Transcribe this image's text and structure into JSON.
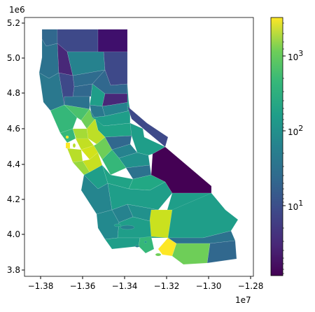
{
  "map": {
    "x_axis": {
      "ticks": [
        "−1.38",
        "−1.36",
        "−1.34",
        "−1.32",
        "−1.30",
        "−1.28"
      ],
      "offset": "1e7"
    },
    "y_axis": {
      "ticks": [
        "5.2",
        "5.0",
        "4.8",
        "4.6",
        "4.4",
        "4.2",
        "4.0",
        "3.8"
      ],
      "offset": "1e6"
    },
    "colorbar": {
      "scale": "log",
      "major_ticks": [
        {
          "base": "10",
          "exp": "3"
        },
        {
          "base": "10",
          "exp": "2"
        },
        {
          "base": "10",
          "exp": "1"
        }
      ],
      "colormap": "viridis"
    }
  }
}
